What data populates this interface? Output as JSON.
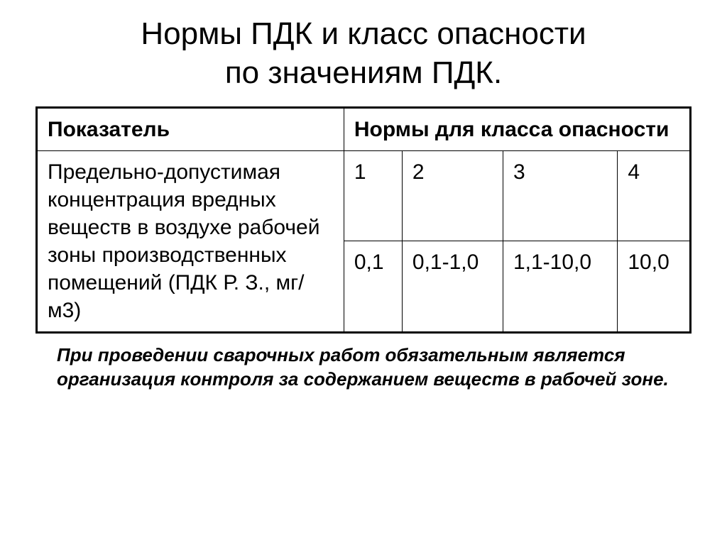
{
  "title_line1": "Нормы ПДК и  класс опасности",
  "title_line2": "по значениям ПДК.",
  "table": {
    "header_indicator": "Показатель",
    "header_norms": "Нормы для класса опасности",
    "row_label": "Предельно-допустимая концентрация вредных веществ в воздухе рабочей зоны производственных помещений (ПДК Р. З., мг/м3)",
    "class_numbers": [
      "1",
      "2",
      "3",
      "4"
    ],
    "class_values": [
      "0,1",
      "0,1-1,0",
      "1,1-10,0",
      "10,0"
    ]
  },
  "footnote": "При проведении сварочных работ обязательным является организация контроля за содержанием веществ в рабочей зоне.",
  "style": {
    "background_color": "#ffffff",
    "text_color": "#000000",
    "border_color": "#000000",
    "title_fontsize": 44,
    "cell_fontsize": 30,
    "footnote_fontsize": 26,
    "outer_border_width": 3,
    "inner_border_width": 1,
    "indicator_col_width_pct": 47
  }
}
